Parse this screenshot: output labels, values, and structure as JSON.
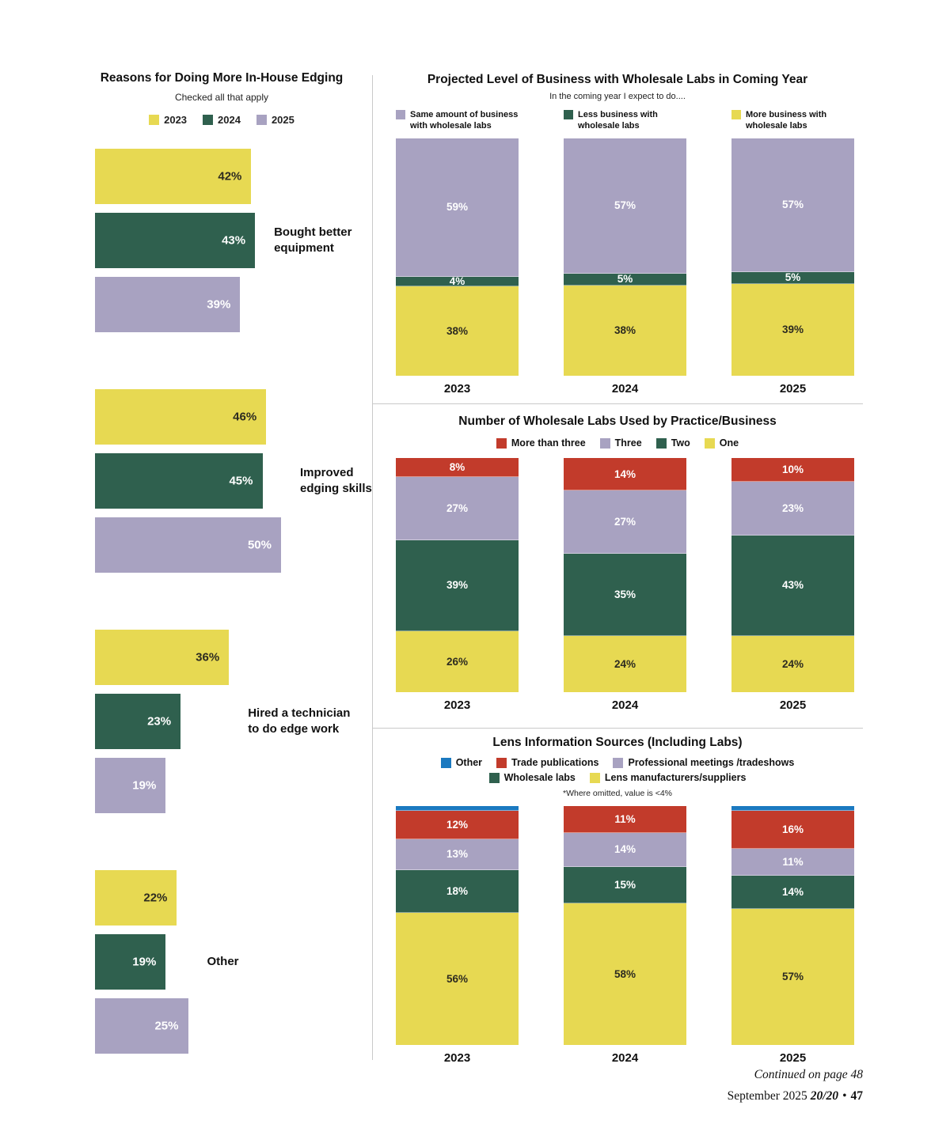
{
  "palette": {
    "yellow": {
      "bg": "#e7d952",
      "text": "#2d2b20"
    },
    "green": {
      "bg": "#2f604e",
      "text": "#ffffff"
    },
    "purple": {
      "bg": "#a8a2c1",
      "text": "#ffffff"
    },
    "red": {
      "bg": "#c23b2b",
      "text": "#ffffff"
    },
    "blue": {
      "bg": "#1b79c0",
      "text": "#ffffff"
    }
  },
  "divider_color": "#c9c9c9",
  "footer": {
    "continued": "Continued on page 48",
    "issue": "September 2025",
    "magazine": "20/20",
    "bullet": "•",
    "page_number": "47"
  },
  "chart_data": [
    {
      "type": "bar",
      "orientation": "horizontal",
      "title": "Reasons for Doing More In-House Edging",
      "subtitle": "Checked all that apply",
      "unit": "percent",
      "xlim": [
        0,
        50
      ],
      "series": [
        {
          "year": "2023",
          "color": "yellow"
        },
        {
          "year": "2024",
          "color": "green"
        },
        {
          "year": "2025",
          "color": "purple"
        }
      ],
      "groups": [
        {
          "label": "Bought better\nequipment",
          "bars": [
            {
              "value": 42,
              "label": "42%"
            },
            {
              "value": 43,
              "label": "43%"
            },
            {
              "value": 39,
              "label": "39%"
            }
          ]
        },
        {
          "label": "Improved\nedging skills",
          "bars": [
            {
              "value": 46,
              "label": "46%"
            },
            {
              "value": 45,
              "label": "45%"
            },
            {
              "value": 50,
              "label": "50%"
            }
          ]
        },
        {
          "label": "Hired a technician\nto do edge work",
          "bars": [
            {
              "value": 36,
              "label": "36%"
            },
            {
              "value": 23,
              "label": "23%"
            },
            {
              "value": 19,
              "label": "19%"
            }
          ]
        },
        {
          "label": "Other",
          "bars": [
            {
              "value": 22,
              "label": "22%"
            },
            {
              "value": 19,
              "label": "19%"
            },
            {
              "value": 25,
              "label": "25%"
            }
          ]
        }
      ]
    },
    {
      "type": "stacked-bar",
      "title": "Projected Level of Business with Wholesale Labs in Coming Year",
      "subtitle": "In the coming year I expect to do....",
      "legend_layout": "columns",
      "legend_rows": [
        [
          {
            "label": "Same amount of business\nwith wholesale labs",
            "color": "purple"
          },
          {
            "label": "Less business with\nwholesale labs",
            "color": "green"
          },
          {
            "label": "More business with\nwholesale labs",
            "color": "yellow"
          }
        ]
      ],
      "columns": [
        {
          "year": "2023",
          "segments": [
            {
              "color": "purple",
              "value": 59,
              "label": "59%"
            },
            {
              "color": "green",
              "value": 4,
              "label": "4%"
            },
            {
              "color": "yellow",
              "value": 38,
              "label": "38%"
            }
          ]
        },
        {
          "year": "2024",
          "segments": [
            {
              "color": "purple",
              "value": 57,
              "label": "57%"
            },
            {
              "color": "green",
              "value": 5,
              "label": "5%"
            },
            {
              "color": "yellow",
              "value": 38,
              "label": "38%"
            }
          ]
        },
        {
          "year": "2025",
          "segments": [
            {
              "color": "purple",
              "value": 57,
              "label": "57%"
            },
            {
              "color": "green",
              "value": 5,
              "label": "5%"
            },
            {
              "color": "yellow",
              "value": 39,
              "label": "39%"
            }
          ]
        }
      ]
    },
    {
      "type": "stacked-bar",
      "title": "Number of Wholesale Labs Used by Practice/Business",
      "legend_layout": "center",
      "legend_rows": [
        [
          {
            "label": "More than three",
            "color": "red"
          },
          {
            "label": "Three",
            "color": "purple"
          },
          {
            "label": "Two",
            "color": "green"
          },
          {
            "label": "One",
            "color": "yellow"
          }
        ]
      ],
      "columns": [
        {
          "year": "2023",
          "segments": [
            {
              "color": "red",
              "value": 8,
              "label": "8%"
            },
            {
              "color": "purple",
              "value": 27,
              "label": "27%"
            },
            {
              "color": "green",
              "value": 39,
              "label": "39%"
            },
            {
              "color": "yellow",
              "value": 26,
              "label": "26%"
            }
          ]
        },
        {
          "year": "2024",
          "segments": [
            {
              "color": "red",
              "value": 14,
              "label": "14%"
            },
            {
              "color": "purple",
              "value": 27,
              "label": "27%"
            },
            {
              "color": "green",
              "value": 35,
              "label": "35%"
            },
            {
              "color": "yellow",
              "value": 24,
              "label": "24%"
            }
          ]
        },
        {
          "year": "2025",
          "segments": [
            {
              "color": "red",
              "value": 10,
              "label": "10%"
            },
            {
              "color": "purple",
              "value": 23,
              "label": "23%"
            },
            {
              "color": "green",
              "value": 43,
              "label": "43%"
            },
            {
              "color": "yellow",
              "value": 24,
              "label": "24%"
            }
          ]
        }
      ]
    },
    {
      "type": "stacked-bar",
      "title": "Lens Information Sources (Including Labs)",
      "note": "*Where omitted, value is <4%",
      "legend_layout": "center",
      "legend_rows": [
        [
          {
            "label": "Other",
            "color": "blue"
          },
          {
            "label": "Trade publications",
            "color": "red"
          },
          {
            "label": "Professional meetings /tradeshows",
            "color": "purple"
          }
        ],
        [
          {
            "label": "Wholesale labs",
            "color": "green"
          },
          {
            "label": "Lens manufacturers/suppliers",
            "color": "yellow"
          }
        ]
      ],
      "columns": [
        {
          "year": "2023",
          "segments": [
            {
              "color": "blue",
              "value": 2,
              "label": ""
            },
            {
              "color": "red",
              "value": 12,
              "label": "12%"
            },
            {
              "color": "purple",
              "value": 13,
              "label": "13%"
            },
            {
              "color": "green",
              "value": 18,
              "label": "18%"
            },
            {
              "color": "yellow",
              "value": 56,
              "label": "56%"
            }
          ]
        },
        {
          "year": "2024",
          "segments": [
            {
              "color": "red",
              "value": 11,
              "label": "11%"
            },
            {
              "color": "purple",
              "value": 14,
              "label": "14%"
            },
            {
              "color": "green",
              "value": 15,
              "label": "15%"
            },
            {
              "color": "yellow",
              "value": 58,
              "label": "58%"
            }
          ]
        },
        {
          "year": "2025",
          "segments": [
            {
              "color": "blue",
              "value": 2,
              "label": ""
            },
            {
              "color": "red",
              "value": 16,
              "label": "16%"
            },
            {
              "color": "purple",
              "value": 11,
              "label": "11%"
            },
            {
              "color": "green",
              "value": 14,
              "label": "14%"
            },
            {
              "color": "yellow",
              "value": 57,
              "label": "57%"
            }
          ]
        }
      ]
    }
  ]
}
